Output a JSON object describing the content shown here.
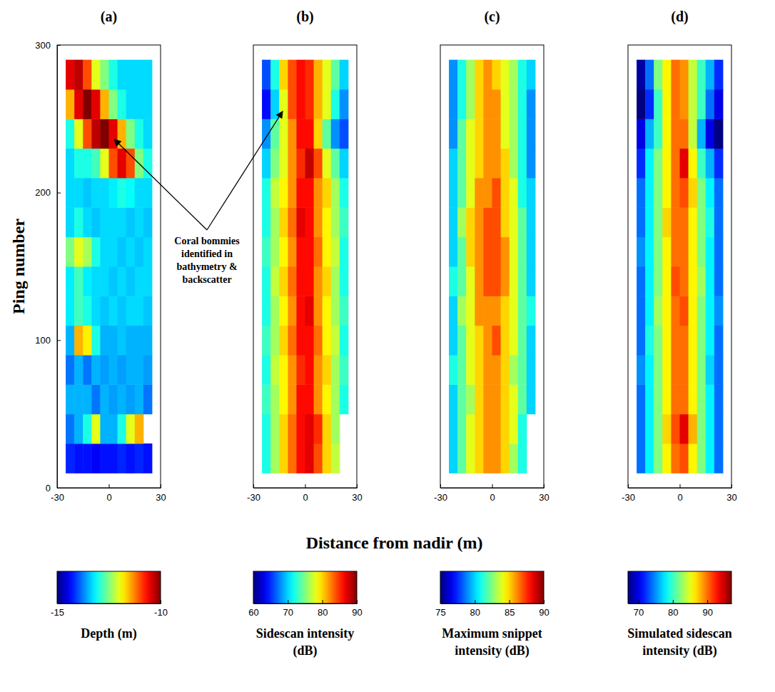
{
  "x_label": "Distance from nadir (m)",
  "annotation": "Coral bommies identified in bathymetry & backscatter",
  "chart_data": [
    {
      "type": "heatmap",
      "title": "(a)",
      "y_label": "Ping number",
      "x": [
        -22.5,
        -17.5,
        -12.5,
        -7.5,
        -2.5,
        2.5,
        7.5,
        12.5,
        17.5,
        22.5
      ],
      "y": [
        20,
        40,
        60,
        80,
        100,
        120,
        140,
        160,
        180,
        200,
        220,
        240,
        260,
        280
      ],
      "z": [
        [
          -14.2,
          -14.3,
          -14.3,
          -14.4,
          -14.3,
          -14.3,
          -14.2,
          -14.3,
          -14.2,
          -14.3
        ],
        [
          -13.8,
          -13.5,
          -13,
          -12,
          -13.5,
          -13.5,
          -13,
          -12,
          -11.5,
          null
        ],
        [
          -13.5,
          -13.5,
          -13.5,
          -13.8,
          -13.5,
          -13.6,
          -13.5,
          -13.6,
          -13.5,
          -13.8
        ],
        [
          -13.8,
          -13.5,
          -13.8,
          -13.5,
          -13.6,
          -13.5,
          -13.6,
          -13.5,
          -13.5,
          -13.6
        ],
        [
          -13.5,
          -11.5,
          -11.8,
          -13,
          -13.5,
          -13.5,
          -13.4,
          -13.5,
          -13.5,
          -13.5
        ],
        [
          -13.2,
          -12.8,
          -13,
          -13.3,
          -13.4,
          -13.3,
          -13.4,
          -13.3,
          -13.3,
          -13.4
        ],
        [
          -13.2,
          -12.8,
          -13.2,
          -13.3,
          -13.3,
          -13.4,
          -13.3,
          -13.4,
          -13.3,
          -13.3
        ],
        [
          -12.5,
          -12,
          -12.3,
          -13,
          -13.3,
          -13.3,
          -13.4,
          -13.3,
          -13.4,
          -13.3
        ],
        [
          -13.3,
          -13,
          -13.3,
          -13.4,
          -13.3,
          -13.3,
          -13.3,
          -13.4,
          -13.3,
          -13.4
        ],
        [
          -13.3,
          -13.3,
          -13.4,
          -13.3,
          -13.3,
          -13.2,
          -13,
          -13.1,
          -13.3,
          -13.3
        ],
        [
          -13.3,
          -13,
          -13,
          -12.8,
          -12,
          -11,
          -10.5,
          -11,
          -12.5,
          -13
        ],
        [
          -13,
          -12,
          -11,
          -10.3,
          -10,
          -10.5,
          -11.5,
          -12.5,
          -13,
          -13.3
        ],
        [
          -11.5,
          -10.5,
          -10,
          -10.5,
          -11.5,
          -12.5,
          -13,
          -13.3,
          -13.3,
          -13.3
        ],
        [
          -10.5,
          -10.3,
          -11,
          -12,
          -12.5,
          -13,
          -13.3,
          -13.3,
          -13.3,
          -13.3
        ]
      ],
      "xlim": [
        -30,
        30
      ],
      "xticks": [
        -30,
        0,
        30
      ],
      "ylim": [
        0,
        300
      ],
      "yticks": [
        0,
        100,
        200,
        300
      ],
      "colorbar": {
        "label": "Depth (m)",
        "range": [
          -15,
          -10
        ],
        "ticks": [
          -15,
          -10
        ]
      }
    },
    {
      "type": "heatmap",
      "title": "(b)",
      "tick_labels": "x",
      "x": [
        -22.5,
        -17.5,
        -12.5,
        -7.5,
        -2.5,
        2.5,
        7.5,
        12.5,
        17.5,
        22.5
      ],
      "y": [
        20,
        40,
        60,
        80,
        100,
        120,
        140,
        160,
        180,
        200,
        220,
        240,
        260,
        280
      ],
      "z": [
        [
          72,
          76,
          80,
          83,
          86,
          87,
          84,
          80,
          77,
          null
        ],
        [
          72,
          76,
          80,
          83,
          86,
          87,
          85,
          80,
          76,
          null
        ],
        [
          73,
          76,
          79,
          82,
          86,
          86,
          82,
          79,
          76,
          72
        ],
        [
          72,
          77,
          79,
          82,
          85,
          86,
          82,
          80,
          76,
          73
        ],
        [
          73,
          76,
          80,
          83,
          86,
          86,
          83,
          79,
          77,
          72
        ],
        [
          72,
          76,
          79,
          82,
          86,
          87,
          82,
          79,
          76,
          73
        ],
        [
          72,
          77,
          80,
          83,
          86,
          86,
          82,
          80,
          76,
          72
        ],
        [
          73,
          76,
          79,
          82,
          86,
          86,
          83,
          79,
          77,
          72
        ],
        [
          72,
          76,
          80,
          83,
          87,
          86,
          82,
          79,
          76,
          73
        ],
        [
          72,
          77,
          79,
          82,
          86,
          86,
          82,
          80,
          76,
          72
        ],
        [
          70,
          75,
          78,
          82,
          85,
          88,
          84,
          78,
          74,
          70
        ],
        [
          68,
          74,
          78,
          82,
          86,
          86,
          80,
          74,
          68,
          66
        ],
        [
          64,
          70,
          78,
          84,
          86,
          85,
          81,
          78,
          72,
          68
        ],
        [
          66,
          72,
          80,
          84,
          86,
          85,
          81,
          78,
          74,
          70
        ]
      ],
      "xlim": [
        -30,
        30
      ],
      "xticks": [
        -30,
        0,
        30
      ],
      "ylim": [
        0,
        300
      ],
      "colorbar": {
        "label": "Sidescan intensity (dB)",
        "range": [
          60,
          90
        ],
        "ticks": [
          60,
          70,
          80,
          90
        ]
      }
    },
    {
      "type": "heatmap",
      "title": "(c)",
      "tick_labels": "x",
      "x": [
        -22.5,
        -17.5,
        -12.5,
        -7.5,
        -2.5,
        2.5,
        7.5,
        12.5,
        17.5,
        22.5
      ],
      "y": [
        20,
        40,
        60,
        80,
        100,
        120,
        140,
        160,
        180,
        200,
        220,
        240,
        260,
        280
      ],
      "z": [
        [
          80,
          82,
          84,
          85,
          86,
          86,
          85,
          83,
          81,
          null
        ],
        [
          80,
          82,
          84,
          85,
          86,
          86,
          85,
          84,
          81,
          null
        ],
        [
          80,
          82,
          83,
          85,
          86,
          86,
          85,
          84,
          82,
          80
        ],
        [
          81,
          82,
          84,
          85,
          86,
          86,
          85,
          83,
          82,
          80
        ],
        [
          80,
          82,
          84,
          85,
          86,
          87,
          85,
          84,
          82,
          80
        ],
        [
          80,
          83,
          84,
          86,
          86,
          86,
          85,
          84,
          82,
          81
        ],
        [
          81,
          82,
          84,
          86,
          87,
          87,
          86,
          84,
          82,
          80
        ],
        [
          80,
          82,
          85,
          86,
          87,
          87,
          86,
          84,
          82,
          80
        ],
        [
          80,
          83,
          85,
          86,
          87,
          87,
          85,
          84,
          82,
          80
        ],
        [
          80,
          82,
          84,
          86,
          86,
          87,
          85,
          84,
          81,
          80
        ],
        [
          80,
          82,
          84,
          85,
          86,
          86,
          85,
          83,
          81,
          79
        ],
        [
          79,
          82,
          84,
          85,
          86,
          86,
          84,
          83,
          81,
          79
        ],
        [
          79,
          81,
          83,
          85,
          86,
          86,
          84,
          83,
          81,
          79
        ],
        [
          79,
          81,
          83,
          85,
          86,
          85,
          84,
          83,
          81,
          80
        ]
      ],
      "xlim": [
        -30,
        30
      ],
      "xticks": [
        -30,
        0,
        30
      ],
      "ylim": [
        0,
        300
      ],
      "colorbar": {
        "label": "Maximum snippet intensity (dB)",
        "range": [
          75,
          90
        ],
        "ticks": [
          75,
          80,
          85,
          90
        ]
      }
    },
    {
      "type": "heatmap",
      "title": "(d)",
      "tick_labels": "x",
      "x": [
        -22.5,
        -17.5,
        -12.5,
        -7.5,
        -2.5,
        2.5,
        7.5,
        12.5,
        17.5,
        22.5
      ],
      "y": [
        20,
        40,
        60,
        80,
        100,
        120,
        140,
        160,
        180,
        200,
        220,
        240,
        260,
        280
      ],
      "z": [
        [
          74,
          78,
          82,
          86,
          90,
          91,
          86,
          82,
          78,
          74
        ],
        [
          74,
          78,
          82,
          87,
          91,
          94,
          88,
          82,
          78,
          74
        ],
        [
          74,
          78,
          82,
          86,
          90,
          90,
          86,
          82,
          78,
          74
        ],
        [
          75,
          78,
          82,
          86,
          90,
          90,
          86,
          82,
          77,
          74
        ],
        [
          74,
          79,
          82,
          86,
          90,
          90,
          86,
          82,
          78,
          74
        ],
        [
          74,
          78,
          83,
          86,
          90,
          91,
          86,
          82,
          78,
          75
        ],
        [
          74,
          78,
          82,
          86,
          91,
          90,
          86,
          83,
          78,
          74
        ],
        [
          75,
          78,
          82,
          86,
          90,
          90,
          86,
          82,
          78,
          74
        ],
        [
          74,
          78,
          82,
          87,
          90,
          90,
          86,
          82,
          79,
          74
        ],
        [
          74,
          78,
          82,
          86,
          90,
          91,
          87,
          82,
          78,
          74
        ],
        [
          72,
          78,
          82,
          86,
          90,
          94,
          86,
          80,
          76,
          72
        ],
        [
          70,
          76,
          80,
          86,
          90,
          90,
          84,
          76,
          70,
          66
        ],
        [
          66,
          72,
          80,
          86,
          90,
          89,
          84,
          80,
          74,
          70
        ],
        [
          68,
          74,
          82,
          86,
          90,
          89,
          84,
          80,
          76,
          72
        ]
      ],
      "xlim": [
        -30,
        30
      ],
      "xticks": [
        -30,
        0,
        30
      ],
      "ylim": [
        0,
        300
      ],
      "colorbar": {
        "label": "Simulated sidescan intensity (dB)",
        "range": [
          67,
          97
        ],
        "ticks": [
          70,
          80,
          90
        ]
      }
    }
  ]
}
